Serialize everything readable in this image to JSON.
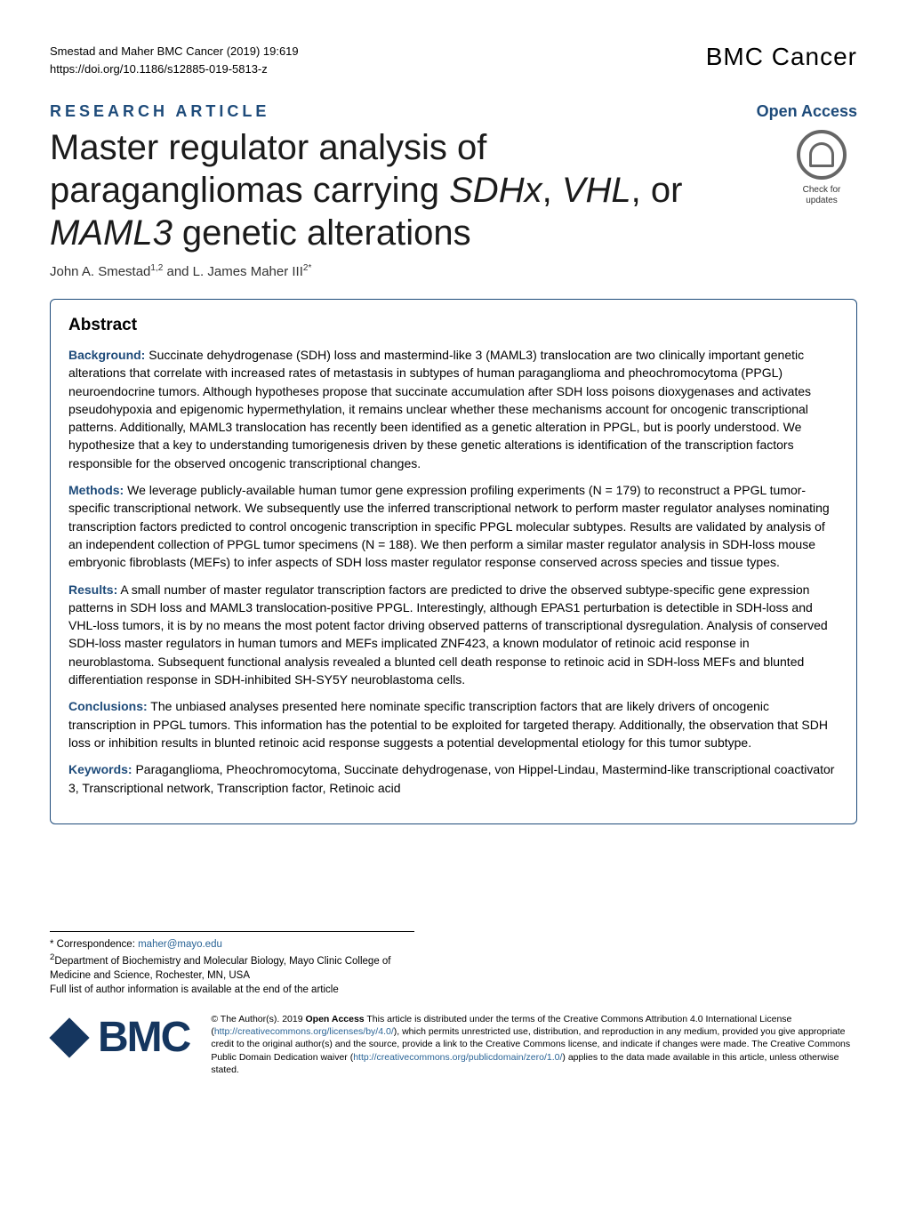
{
  "meta": {
    "citation_line1": "Smestad and Maher BMC Cancer      (2019) 19:619",
    "citation_line2": "https://doi.org/10.1186/s12885-019-5813-z",
    "journal_brand": "BMC Cancer",
    "article_type": "RESEARCH ARTICLE",
    "open_access": "Open Access"
  },
  "title": {
    "line1": "Master regulator analysis of",
    "line2_pre": "paragangliomas carrying ",
    "line2_italic1": "SDHx",
    "line2_mid": ", ",
    "line2_italic2": "VHL",
    "line2_post": ", or",
    "line3_italic": "MAML3",
    "line3_post": " genetic alterations"
  },
  "crossmark": {
    "line1": "Check for",
    "line2": "updates"
  },
  "authors": "John A. Smestad1,2 and L. James Maher III2*",
  "abstract": {
    "heading": "Abstract",
    "background_label": "Background:",
    "background_text": " Succinate dehydrogenase (SDH) loss and mastermind-like 3 (MAML3) translocation are two clinically important genetic alterations that correlate with increased rates of metastasis in subtypes of human paraganglioma and pheochromocytoma (PPGL) neuroendocrine tumors. Although hypotheses propose that succinate accumulation after SDH loss poisons dioxygenases and activates pseudohypoxia and epigenomic hypermethylation, it remains unclear whether these mechanisms account for oncogenic transcriptional patterns. Additionally, MAML3 translocation has recently been identified as a genetic alteration in PPGL, but is poorly understood. We hypothesize that a key to understanding tumorigenesis driven by these genetic alterations is identification of the transcription factors responsible for the observed oncogenic transcriptional changes.",
    "methods_label": "Methods:",
    "methods_text": " We leverage publicly-available human tumor gene expression profiling experiments (N = 179) to reconstruct a PPGL tumor-specific transcriptional network. We subsequently use the inferred transcriptional network to perform master regulator analyses nominating transcription factors predicted to control oncogenic transcription in specific PPGL molecular subtypes. Results are validated by analysis of an independent collection of PPGL tumor specimens (N = 188). We then perform a similar master regulator analysis in SDH-loss mouse embryonic fibroblasts (MEFs) to infer aspects of SDH loss master regulator response conserved across species and tissue types.",
    "results_label": "Results:",
    "results_text": " A small number of master regulator transcription factors are predicted to drive the observed subtype-specific gene expression patterns in SDH loss and MAML3 translocation-positive PPGL. Interestingly, although EPAS1 perturbation is detectible in SDH-loss and VHL-loss tumors, it is by no means the most potent factor driving observed patterns of transcriptional dysregulation. Analysis of conserved SDH-loss master regulators in human tumors and MEFs implicated ZNF423, a known modulator of retinoic acid response in neuroblastoma. Subsequent functional analysis revealed a blunted cell death response to retinoic acid in SDH-loss MEFs and blunted differentiation response in SDH-inhibited SH-SY5Y neuroblastoma cells.",
    "conclusions_label": "Conclusions:",
    "conclusions_text": " The unbiased analyses presented here nominate specific transcription factors that are likely drivers of oncogenic transcription in PPGL tumors. This information has the potential to be exploited for targeted therapy. Additionally, the observation that SDH loss or inhibition results in blunted retinoic acid response suggests a potential developmental etiology for this tumor subtype.",
    "keywords_label": "Keywords:",
    "keywords_text": " Paraganglioma, Pheochromocytoma, Succinate dehydrogenase, von Hippel-Lindau, Mastermind-like transcriptional coactivator 3, Transcriptional network, Transcription factor, Retinoic acid"
  },
  "correspondence": {
    "line1_pre": "* Correspondence: ",
    "email": "maher@mayo.edu",
    "line2": "2Department of Biochemistry and Molecular Biology, Mayo Clinic College of Medicine and Science, Rochester, MN, USA",
    "line3": "Full list of author information is available at the end of the article"
  },
  "footer": {
    "bmc_text": "BMC",
    "license_pre": "© The Author(s). 2019 ",
    "license_bold": "Open Access",
    "license_text1": " This article is distributed under the terms of the Creative Commons Attribution 4.0 International License (",
    "license_url1": "http://creativecommons.org/licenses/by/4.0/",
    "license_text2": "), which permits unrestricted use, distribution, and reproduction in any medium, provided you give appropriate credit to the original author(s) and the source, provide a link to the Creative Commons license, and indicate if changes were made. The Creative Commons Public Domain Dedication waiver (",
    "license_url2": "http://creativecommons.org/publicdomain/zero/1.0/",
    "license_text3": ") applies to the data made available in this article, unless otherwise stated."
  },
  "colors": {
    "brand_blue": "#1e4b7a",
    "link_blue": "#2a6496",
    "bmc_navy": "#15365f",
    "text": "#000000",
    "background": "#ffffff"
  }
}
